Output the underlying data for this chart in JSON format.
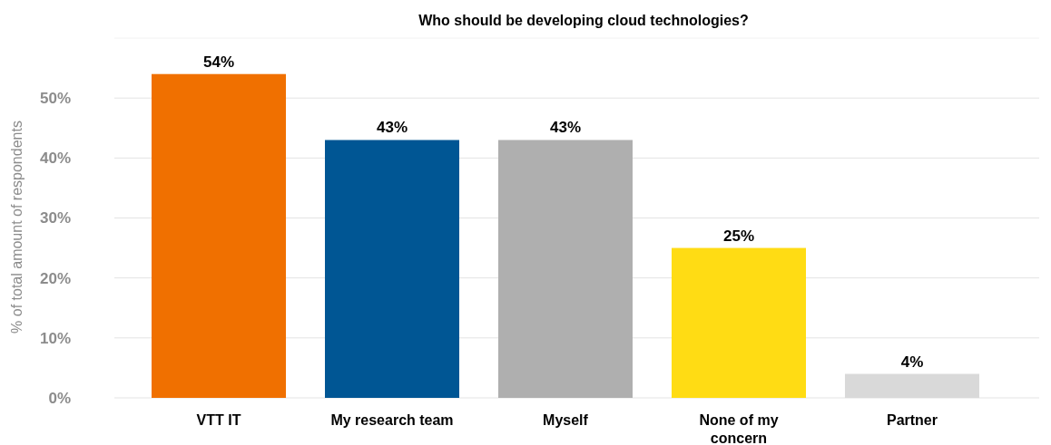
{
  "chart_data": {
    "type": "bar",
    "title": "Who should be developing cloud technologies?",
    "ylabel": "% of total amount of respondents",
    "categories": [
      "VTT IT",
      "My research team",
      "Myself",
      "None of my concern",
      "Partner"
    ],
    "values": [
      54,
      43,
      43,
      25,
      4
    ],
    "colors": [
      "#f07000",
      "#005694",
      "#afafaf",
      "#ffdc14",
      "#d9d9d9"
    ],
    "ylim": [
      0,
      60
    ],
    "yticks": [
      {
        "value": 0,
        "label": "0%"
      },
      {
        "value": 10,
        "label": "10%"
      },
      {
        "value": 20,
        "label": "20%"
      },
      {
        "value": 30,
        "label": "30%"
      },
      {
        "value": 40,
        "label": "40%"
      },
      {
        "value": 50,
        "label": "50%"
      }
    ],
    "value_labels": [
      "54%",
      "43%",
      "43%",
      "25%",
      "4%"
    ],
    "grid": "y"
  }
}
